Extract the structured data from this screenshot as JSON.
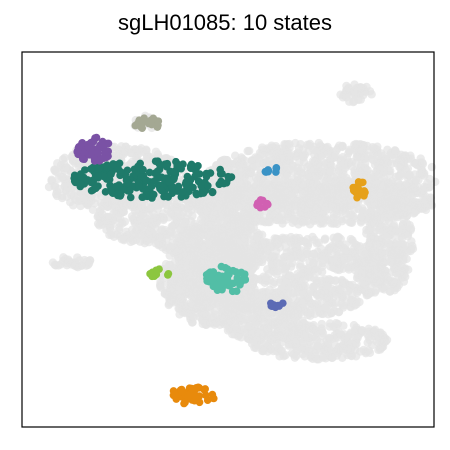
{
  "chart_data": {
    "type": "scatter",
    "title": "sgLH01085: 10 states",
    "xlabel": "",
    "ylabel": "",
    "grid": false,
    "legend": "none",
    "background_color": "#e4e4e4",
    "background_regions": [
      {
        "cx": 23,
        "cy": 34,
        "rx": 17,
        "ry": 9
      },
      {
        "cx": 38,
        "cy": 44,
        "rx": 20,
        "ry": 9
      },
      {
        "cx": 45,
        "cy": 60,
        "rx": 12,
        "ry": 9
      },
      {
        "cx": 46,
        "cy": 65,
        "rx": 11,
        "ry": 8
      },
      {
        "cx": 70,
        "cy": 40,
        "rx": 30,
        "ry": 6
      },
      {
        "cx": 73,
        "cy": 33,
        "rx": 28,
        "ry": 9
      },
      {
        "cx": 89,
        "cy": 51,
        "rx": 6,
        "ry": 13
      },
      {
        "cx": 70,
        "cy": 54,
        "rx": 22,
        "ry": 5
      },
      {
        "cx": 64,
        "cy": 65,
        "rx": 19,
        "ry": 6
      },
      {
        "cx": 58,
        "cy": 71,
        "rx": 11,
        "ry": 6
      },
      {
        "cx": 72,
        "cy": 77,
        "rx": 17,
        "ry": 5
      },
      {
        "cx": 53,
        "cy": 52,
        "rx": 6,
        "ry": 7
      },
      {
        "cx": 45,
        "cy": 52,
        "rx": 8,
        "ry": 6
      },
      {
        "cx": 12,
        "cy": 56,
        "rx": 5,
        "ry": 1.5
      },
      {
        "cx": 84,
        "cy": 61,
        "rx": 3,
        "ry": 4
      },
      {
        "cx": 81,
        "cy": 11,
        "rx": 4,
        "ry": 2.5
      },
      {
        "cx": 30,
        "cy": 19,
        "rx": 3,
        "ry": 2
      },
      {
        "cx": 17,
        "cy": 27,
        "rx": 4,
        "ry": 3
      }
    ],
    "clusters": [
      {
        "state": 1,
        "color": "#1f7a6a",
        "cx": 32,
        "cy": 34,
        "rx": 20,
        "ry": 5,
        "n": 230
      },
      {
        "state": 2,
        "color": "#7a52a5",
        "cx": 17.5,
        "cy": 26,
        "rx": 4.3,
        "ry": 3.3,
        "n": 50
      },
      {
        "state": 3,
        "color": "#a4a893",
        "cx": 30.5,
        "cy": 19,
        "rx": 3.3,
        "ry": 1.5,
        "n": 18
      },
      {
        "state": 4,
        "color": "#3a93c6",
        "cx": 60.5,
        "cy": 31.5,
        "rx": 2.2,
        "ry": 0.9,
        "n": 8
      },
      {
        "state": 5,
        "color": "#e6a11a",
        "cx": 82.5,
        "cy": 37,
        "rx": 2.5,
        "ry": 2.5,
        "n": 18
      },
      {
        "state": 6,
        "color": "#d160b2",
        "cx": 58.5,
        "cy": 40.5,
        "rx": 2.5,
        "ry": 1.2,
        "n": 10
      },
      {
        "state": 7,
        "color": "#8cc63f",
        "cx": 33.5,
        "cy": 59,
        "rx": 2.5,
        "ry": 1.3,
        "n": 10
      },
      {
        "state": 8,
        "color": "#52bea6",
        "cx": 50,
        "cy": 60.5,
        "rx": 5.5,
        "ry": 3.6,
        "n": 55
      },
      {
        "state": 9,
        "color": "#5c6bb5",
        "cx": 61.5,
        "cy": 67.5,
        "rx": 2.3,
        "ry": 1.1,
        "n": 8
      },
      {
        "state": 10,
        "color": "#e88a0c",
        "cx": 41,
        "cy": 91.5,
        "rx": 6,
        "ry": 2.5,
        "n": 45
      }
    ]
  }
}
